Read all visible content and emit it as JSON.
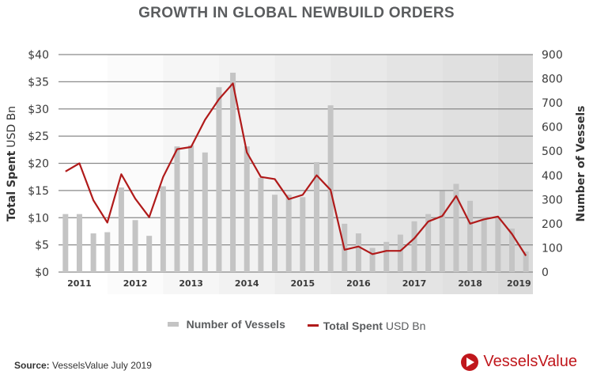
{
  "title": "GROWTH IN GLOBAL NEWBUILD ORDERS",
  "legend": {
    "bar_label": "Number of Vessels",
    "line_label_bold": "Total Spent",
    "line_label_rest": "USD Bn"
  },
  "source": {
    "label": "Source:",
    "text": "VesselsValue July 2019"
  },
  "logo": {
    "text": "VesselsValue",
    "icon": "vesselsvalue-logo-icon"
  },
  "colors": {
    "bar": "#c4c4c4",
    "line": "#b01a1a",
    "accent": "#c0171c"
  },
  "chart_data": {
    "type": "bar",
    "title": "GROWTH IN GLOBAL NEWBUILD ORDERS",
    "xlabel": "",
    "ylabel_left": {
      "bold": "Total Spent",
      "rest": "USD Bn"
    },
    "ylabel_right": "Number of Vessels",
    "ylim_left": [
      0,
      40
    ],
    "ylim_right": [
      0,
      900
    ],
    "yticks_left": [
      "$0",
      "$5",
      "$10",
      "$15",
      "$20",
      "$25",
      "$30",
      "$35",
      "$40"
    ],
    "yticks_right": [
      "0",
      "100",
      "200",
      "300",
      "400",
      "500",
      "600",
      "700",
      "800",
      "900"
    ],
    "year_labels": [
      "2011",
      "2012",
      "2013",
      "2014",
      "2015",
      "2016",
      "2017",
      "2018",
      "2019"
    ],
    "grid": true,
    "legend_position": "bottom",
    "categories": [
      "2011 Q1",
      "2011 Q2",
      "2011 Q3",
      "2011 Q4",
      "2012 Q1",
      "2012 Q2",
      "2012 Q3",
      "2012 Q4",
      "2013 Q1",
      "2013 Q2",
      "2013 Q3",
      "2013 Q4",
      "2014 Q1",
      "2014 Q2",
      "2014 Q3",
      "2014 Q4",
      "2015 Q1",
      "2015 Q2",
      "2015 Q3",
      "2015 Q4",
      "2016 Q1",
      "2016 Q2",
      "2016 Q3",
      "2016 Q4",
      "2017 Q1",
      "2017 Q2",
      "2017 Q3",
      "2017 Q4",
      "2018 Q1",
      "2018 Q2",
      "2018 Q3",
      "2018 Q4",
      "2019 Q1",
      "2019 Q2"
    ],
    "series": [
      {
        "name": "Number of Vessels",
        "type": "bar",
        "axis": "right",
        "values": [
          240,
          240,
          160,
          165,
          350,
          215,
          150,
          355,
          520,
          525,
          495,
          765,
          825,
          520,
          390,
          320,
          320,
          310,
          455,
          690,
          200,
          160,
          100,
          125,
          155,
          210,
          240,
          335,
          365,
          295,
          225,
          225,
          180,
          85
        ]
      },
      {
        "name": "Total Spent USD Bn",
        "type": "line",
        "axis": "left",
        "values": [
          18.5,
          20.0,
          13.2,
          9.1,
          18.0,
          13.5,
          10.1,
          17.5,
          22.6,
          23.0,
          28.0,
          31.8,
          34.7,
          22.0,
          17.5,
          17.1,
          13.4,
          14.2,
          17.8,
          15.1,
          4.1,
          4.7,
          3.3,
          3.9,
          3.9,
          6.2,
          9.3,
          10.3,
          14.0,
          8.9,
          9.7,
          10.2,
          7.0,
          3.0
        ]
      }
    ]
  }
}
